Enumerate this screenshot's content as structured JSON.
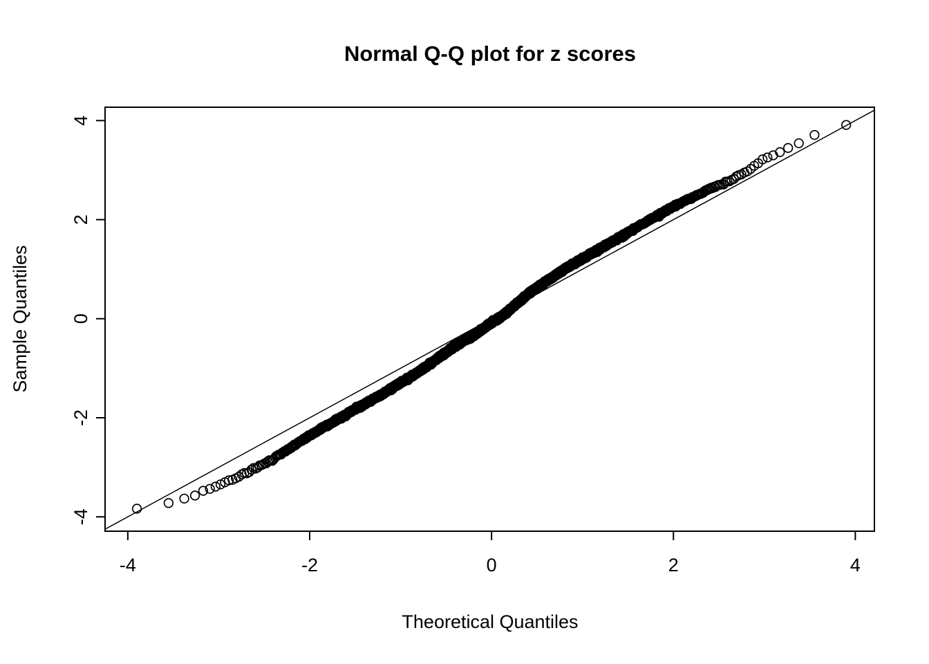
{
  "chart_data": {
    "type": "scatter",
    "title": "Normal Q-Q plot for z scores",
    "xlabel": "Theoretical Quantiles",
    "ylabel": "Sample Quantiles",
    "x_tick_values": [
      -4,
      -2,
      0,
      2,
      4
    ],
    "x_tick_labels": [
      "-4",
      "-2",
      "0",
      "2",
      "4"
    ],
    "y_tick_values": [
      -4,
      -2,
      0,
      2,
      4
    ],
    "y_tick_labels": [
      "-4",
      "-2",
      "0",
      "2",
      "4"
    ],
    "xlim": [
      -4.25,
      4.21
    ],
    "ylim": [
      -4.29,
      4.27
    ],
    "grid": false,
    "legend": null,
    "background": "#ffffff",
    "foreground": "#000000",
    "marker": {
      "shape": "open-circle",
      "radius_px": 6.3,
      "stroke": "#000000",
      "stroke_width": 1.7
    },
    "reference_line": {
      "slope": 1,
      "intercept": 0,
      "color": "#000000",
      "stroke_width": 1.5
    },
    "points_model": {
      "n": 1800,
      "theoretical_extent": 3.9,
      "jitter_sd": 0.012,
      "anchors_theoretical": [
        -3.9,
        -3.6,
        -3.3,
        -3.0,
        -2.7,
        -2.4,
        -2.0,
        -1.6,
        -1.2,
        -0.8,
        -0.4,
        -0.15,
        0,
        0.15,
        0.4,
        0.8,
        1.2,
        1.6,
        2.0,
        2.4,
        2.7,
        3.0,
        3.3,
        3.6,
        3.9
      ],
      "anchors_sample": [
        -3.85,
        -3.74,
        -3.58,
        -3.36,
        -3.12,
        -2.83,
        -2.36,
        -1.93,
        -1.52,
        -1.07,
        -0.55,
        -0.28,
        -0.08,
        0.1,
        0.5,
        1.0,
        1.42,
        1.85,
        2.27,
        2.62,
        2.85,
        3.22,
        3.47,
        3.77,
        3.9
      ]
    }
  }
}
